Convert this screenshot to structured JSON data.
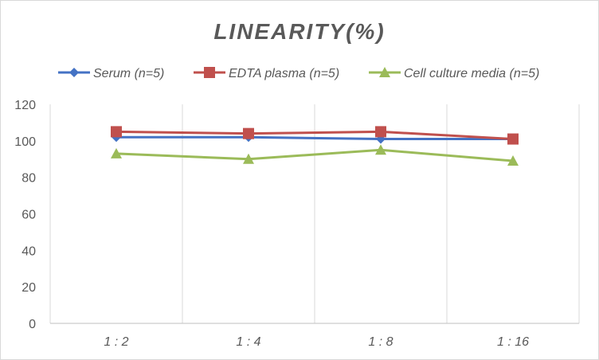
{
  "chart_data": {
    "type": "line",
    "title": "LINEARITY(%)",
    "xlabel": "",
    "ylabel": "",
    "categories": [
      "1:2",
      "1:4",
      "1:8",
      "1:16"
    ],
    "ylim": [
      0,
      120
    ],
    "yticks": [
      0,
      20,
      40,
      60,
      80,
      100,
      120
    ],
    "grid": "vertical",
    "legend": "top",
    "series": [
      {
        "name": "Serum (n=5)",
        "values": [
          102,
          102,
          101,
          101
        ],
        "color": "#4472c4",
        "marker": "diamond"
      },
      {
        "name": "EDTA plasma (n=5)",
        "values": [
          105,
          104,
          105,
          101
        ],
        "color": "#c0504d",
        "marker": "square"
      },
      {
        "name": "Cell culture media (n=5)",
        "values": [
          93,
          90,
          95,
          89
        ],
        "color": "#9bbb59",
        "marker": "triangle"
      }
    ]
  }
}
